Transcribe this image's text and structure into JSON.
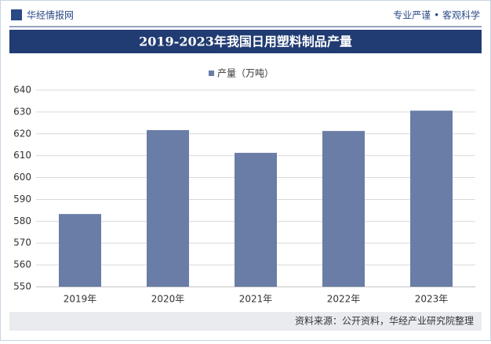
{
  "header": {
    "brand": "华经情报网",
    "tagline": "专业严谨 • 客观科学"
  },
  "chart_data": {
    "type": "bar",
    "title": "2019-2023年我国日用塑料制品产量",
    "categories": [
      "2019年",
      "2020年",
      "2021年",
      "2022年",
      "2023年"
    ],
    "series": [
      {
        "name": "产量（万吨）",
        "color": "#6a7da6",
        "values": [
          583.3,
          621.7,
          611.3,
          621.3,
          630.6
        ]
      }
    ],
    "ylim": [
      550,
      640
    ],
    "yticks": [
      550,
      560,
      570,
      580,
      590,
      600,
      610,
      620,
      630,
      640
    ],
    "grid": true,
    "source": "资料来源：公开资料，华经产业研究院整理"
  }
}
